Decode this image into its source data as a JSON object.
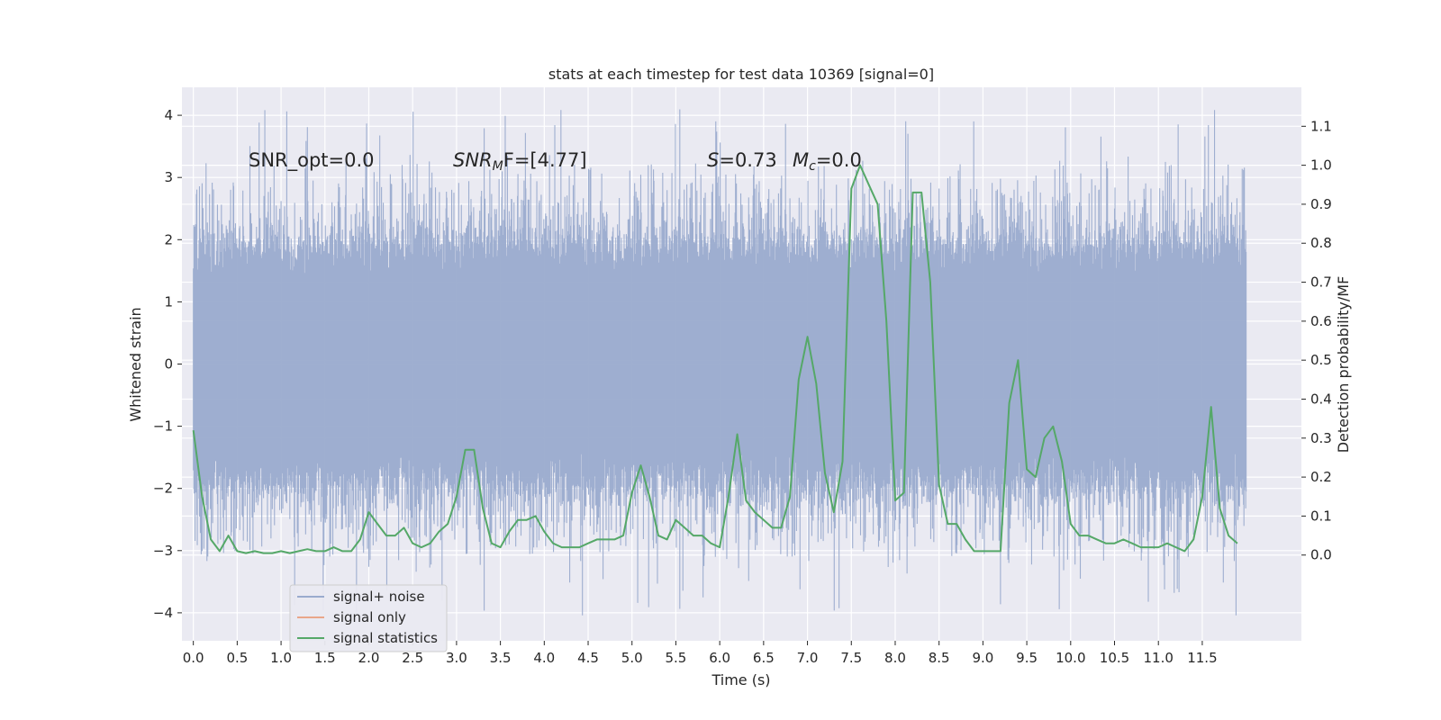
{
  "chart_data": {
    "type": "line",
    "title": "stats at each timestep for test data 10369 [signal=0]",
    "xlabel": "Time (s)",
    "ylabel_left": "Whitened strain",
    "ylabel_right": "Detection probability/MF",
    "xlim": [
      -0.13,
      12.63
    ],
    "ylim_left": [
      -4.45,
      4.45
    ],
    "ylim_right": [
      -0.22,
      1.2
    ],
    "x_ticks": [
      0.0,
      0.5,
      1.0,
      1.5,
      2.0,
      2.5,
      3.0,
      3.5,
      4.0,
      4.5,
      5.0,
      5.5,
      6.0,
      6.5,
      7.0,
      7.5,
      8.0,
      8.5,
      9.0,
      9.5,
      10.0,
      10.5,
      11.0,
      11.5
    ],
    "x_tick_labels": [
      "0.0",
      "0.5",
      "1.0",
      "1.5",
      "2.0",
      "2.5",
      "3.0",
      "3.5",
      "4.0",
      "4.5",
      "5.0",
      "5.5",
      "6.0",
      "6.5",
      "7.0",
      "7.5",
      "8.0",
      "8.5",
      "9.0",
      "9.5",
      "10.0",
      "10.5",
      "11.0",
      "11.5"
    ],
    "y_left_ticks": [
      4,
      3,
      2,
      1,
      0,
      -1,
      -2,
      -3,
      -4
    ],
    "y_left_tick_labels": [
      "4",
      "3",
      "2",
      "1",
      "0",
      "−1",
      "−2",
      "−3",
      "−4"
    ],
    "y_right_ticks": [
      1.1,
      1.0,
      0.9,
      0.8,
      0.7,
      0.6,
      0.5,
      0.4,
      0.3,
      0.2,
      0.1,
      0.0
    ],
    "y_right_tick_labels": [
      "1.1",
      "1.0",
      "0.9",
      "0.8",
      "0.7",
      "0.6",
      "0.5",
      "0.4",
      "0.3",
      "0.2",
      "0.1",
      "0.0"
    ],
    "grid": true,
    "legend_position": "lower-left",
    "annotations": {
      "snr_opt": "SNR_opt=0.0",
      "snr_mf_name": "SNR",
      "snr_mf_sub": "M",
      "snr_mf_rest": "F=[4.77]",
      "s_name": "S",
      "s_rest": "=0.73",
      "mc_name": "M",
      "mc_sub": "c",
      "mc_rest": "=0.0"
    },
    "series": [
      {
        "name": "signal+ noise",
        "color": "#9aabce",
        "axis": "left",
        "kind": "noise_trace",
        "x_range": [
          0.0,
          12.0
        ],
        "envelope": [
          -4.05,
          4.1
        ]
      },
      {
        "name": "signal only",
        "color": "#e9a68a",
        "axis": "left",
        "x": [],
        "y": []
      },
      {
        "name": "signal statistics",
        "color": "#55a868",
        "axis": "right",
        "x": [
          0.0,
          0.1,
          0.2,
          0.3,
          0.4,
          0.5,
          0.6,
          0.7,
          0.8,
          0.9,
          1.0,
          1.1,
          1.2,
          1.3,
          1.4,
          1.5,
          1.6,
          1.7,
          1.8,
          1.9,
          2.0,
          2.1,
          2.2,
          2.3,
          2.4,
          2.5,
          2.6,
          2.7,
          2.8,
          2.9,
          3.0,
          3.1,
          3.2,
          3.3,
          3.4,
          3.5,
          3.6,
          3.7,
          3.8,
          3.9,
          4.0,
          4.1,
          4.2,
          4.3,
          4.4,
          4.5,
          4.6,
          4.7,
          4.8,
          4.9,
          5.0,
          5.1,
          5.2,
          5.3,
          5.4,
          5.5,
          5.6,
          5.7,
          5.8,
          5.9,
          6.0,
          6.1,
          6.2,
          6.3,
          6.4,
          6.5,
          6.6,
          6.7,
          6.8,
          6.9,
          7.0,
          7.1,
          7.2,
          7.3,
          7.4,
          7.5,
          7.6,
          7.7,
          7.8,
          7.9,
          8.0,
          8.1,
          8.2,
          8.3,
          8.4,
          8.5,
          8.6,
          8.7,
          8.8,
          8.9,
          9.0,
          9.1,
          9.2,
          9.3,
          9.4,
          9.5,
          9.6,
          9.7,
          9.8,
          9.9,
          10.0,
          10.1,
          10.2,
          10.3,
          10.4,
          10.5,
          10.6,
          10.7,
          10.8,
          10.9,
          11.0,
          11.1,
          11.2,
          11.3,
          11.4,
          11.5,
          11.6,
          11.7,
          11.8,
          11.9
        ],
        "y": [
          0.32,
          0.15,
          0.04,
          0.01,
          0.05,
          0.01,
          0.005,
          0.01,
          0.005,
          0.005,
          0.01,
          0.005,
          0.01,
          0.015,
          0.01,
          0.01,
          0.02,
          0.01,
          0.01,
          0.04,
          0.11,
          0.08,
          0.05,
          0.05,
          0.07,
          0.03,
          0.02,
          0.03,
          0.06,
          0.08,
          0.15,
          0.27,
          0.27,
          0.12,
          0.03,
          0.02,
          0.06,
          0.09,
          0.09,
          0.1,
          0.06,
          0.03,
          0.02,
          0.02,
          0.02,
          0.03,
          0.04,
          0.04,
          0.04,
          0.05,
          0.16,
          0.23,
          0.15,
          0.05,
          0.04,
          0.09,
          0.07,
          0.05,
          0.05,
          0.03,
          0.02,
          0.15,
          0.31,
          0.14,
          0.11,
          0.09,
          0.07,
          0.07,
          0.15,
          0.45,
          0.56,
          0.44,
          0.21,
          0.11,
          0.24,
          0.94,
          1.0,
          0.95,
          0.9,
          0.6,
          0.14,
          0.16,
          0.93,
          0.93,
          0.7,
          0.18,
          0.08,
          0.08,
          0.04,
          0.01,
          0.01,
          0.01,
          0.01,
          0.39,
          0.5,
          0.22,
          0.2,
          0.3,
          0.33,
          0.24,
          0.08,
          0.05,
          0.05,
          0.04,
          0.03,
          0.03,
          0.04,
          0.03,
          0.02,
          0.02,
          0.02,
          0.03,
          0.02,
          0.01,
          0.04,
          0.15,
          0.38,
          0.12,
          0.05,
          0.03
        ]
      }
    ]
  }
}
